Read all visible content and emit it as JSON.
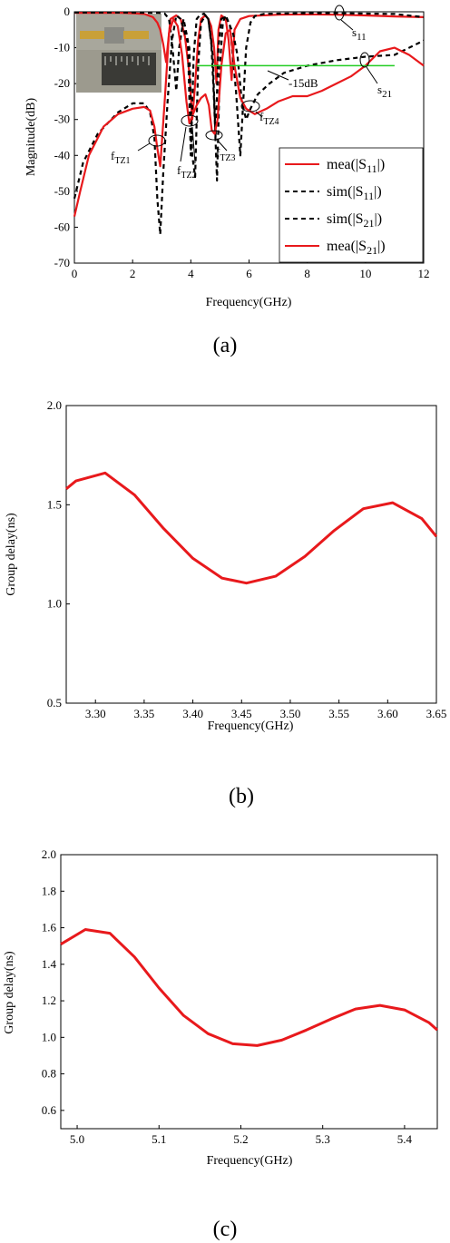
{
  "colors": {
    "measured": "#e8191c",
    "simulated": "#000000",
    "marker": "#22cc22"
  },
  "chart_data": [
    {
      "type": "line",
      "panel_label": "(a)",
      "xlabel": "Frequency(GHz)",
      "ylabel": "Magnitude(dB)",
      "xlim": [
        0,
        12
      ],
      "ylim": [
        -70,
        0
      ],
      "xticks": [
        0,
        2,
        4,
        6,
        8,
        10,
        12
      ],
      "yticks": [
        0,
        -10,
        -20,
        -30,
        -40,
        -50,
        -60,
        -70
      ],
      "legend_position": "bottom-right",
      "inset_photo": true,
      "annotations": {
        "fTZ1": "f",
        "fTZ1_sub": "TZ1",
        "fTZ2": "f",
        "fTZ2_sub": "TZ2",
        "fTZ3": "f",
        "fTZ3_sub": "TZ3",
        "fTZ4": "f",
        "fTZ4_sub": "TZ4",
        "s11": "s",
        "s11_sub": "11",
        "s21": "s",
        "s21_sub": "21",
        "ref": "-15dB",
        "ref_level": -15,
        "ref_range": [
          4.2,
          11
        ]
      },
      "series": [
        {
          "name": "mea(|S",
          "sub": "11",
          "tail": "|)",
          "style": "solid",
          "x": [
            0,
            0.4,
            0.8,
            1.2,
            1.6,
            2.0,
            2.4,
            2.7,
            2.85,
            2.95,
            3.05,
            3.15,
            3.3,
            3.5,
            3.65,
            3.8,
            3.95,
            4.05,
            4.15,
            4.25,
            4.35,
            4.5,
            4.6,
            4.7,
            4.8,
            4.88,
            4.95,
            5.05,
            5.2,
            5.3,
            5.4,
            5.5,
            5.7,
            6.0,
            7.0,
            8.0,
            9.0,
            10.0,
            11.0,
            12.0
          ],
          "y": [
            -0.3,
            -0.3,
            -0.3,
            -0.3,
            -0.3,
            -0.4,
            -0.6,
            -1.5,
            -3,
            -5,
            -9,
            -14,
            -2,
            -1,
            -2,
            -7,
            -17,
            -30,
            -20,
            -8,
            -2,
            -1,
            -2,
            -4,
            -10,
            -20,
            -5,
            -1,
            -2,
            -8,
            -19,
            -5,
            -2,
            -1.2,
            -0.8,
            -0.7,
            -0.8,
            -1,
            -1.3,
            -1.5
          ]
        },
        {
          "name": "sim(|S",
          "sub": "11",
          "tail": "|)",
          "style": "dashed",
          "x": [
            0,
            1,
            2,
            2.9,
            3.1,
            3.25,
            3.35,
            3.5,
            3.6,
            3.75,
            3.9,
            4.0,
            4.1,
            4.2,
            4.3,
            4.45,
            4.6,
            4.75,
            4.85,
            4.95,
            5.05,
            5.2,
            5.35,
            5.55,
            5.7,
            5.8,
            5.9,
            6.05,
            6.2,
            6.5,
            7,
            8,
            9,
            10,
            11,
            12
          ],
          "y": [
            -0.2,
            -0.2,
            -0.2,
            -0.3,
            -0.5,
            -2,
            -8,
            -22,
            -10,
            -2,
            -8,
            -40,
            -12,
            -2,
            -1,
            -0.5,
            -2,
            -12,
            -35,
            -10,
            -2,
            -1.2,
            -4,
            -22,
            -40,
            -25,
            -10,
            -3,
            -1.2,
            -0.6,
            -0.5,
            -0.4,
            -0.4,
            -0.5,
            -0.6,
            -1.5
          ]
        },
        {
          "name": "sim(|S",
          "sub": "21",
          "tail": "|)",
          "style": "dashed",
          "x": [
            0,
            0.3,
            0.8,
            1.5,
            2.0,
            2.4,
            2.6,
            2.75,
            2.85,
            2.95,
            3.05,
            3.2,
            3.35,
            3.5,
            3.65,
            3.8,
            3.95,
            4.05,
            4.15,
            4.25,
            4.35,
            4.5,
            4.6,
            4.7,
            4.8,
            4.9,
            5.0,
            5.1,
            5.2,
            5.3,
            5.45,
            5.6,
            5.75,
            5.9,
            6.05,
            6.3,
            6.7,
            7.2,
            8.0,
            9.0,
            10.0,
            11.0,
            12.0
          ],
          "y": [
            -52,
            -42,
            -34,
            -28,
            -25.5,
            -25.5,
            -28,
            -35,
            -52,
            -62,
            -45,
            -25,
            -8,
            -1,
            -2,
            -6,
            -10,
            -40,
            -46,
            -15,
            -3,
            -1,
            -2,
            -8,
            -25,
            -47,
            -15,
            -3,
            -1,
            -3,
            -6,
            -12,
            -25,
            -30,
            -27,
            -23,
            -20,
            -17,
            -15,
            -13.5,
            -12.5,
            -12,
            -8
          ]
        },
        {
          "name": "mea(|S",
          "sub": "21",
          "tail": "|)",
          "style": "solid",
          "x": [
            0,
            0.2,
            0.5,
            1.0,
            1.5,
            2.0,
            2.4,
            2.6,
            2.75,
            2.85,
            2.95,
            3.1,
            3.25,
            3.4,
            3.55,
            3.7,
            3.85,
            3.95,
            4.05,
            4.2,
            4.35,
            4.5,
            4.62,
            4.72,
            4.82,
            4.92,
            5.05,
            5.2,
            5.35,
            5.5,
            5.7,
            5.9,
            6.2,
            6.6,
            7.0,
            7.5,
            8.0,
            8.5,
            9.0,
            9.5,
            10.0,
            10.5,
            11.0,
            11.5,
            12.0
          ],
          "y": [
            -57,
            -50,
            -40,
            -32,
            -28.5,
            -27,
            -26.5,
            -27.5,
            -32,
            -38,
            -43,
            -25,
            -6,
            -2,
            -4,
            -12,
            -25,
            -31,
            -29,
            -26,
            -24,
            -23,
            -26,
            -33,
            -34,
            -30,
            -15,
            -6,
            -5,
            -15,
            -24,
            -27,
            -28.5,
            -27,
            -25,
            -23.5,
            -23.5,
            -22,
            -20,
            -18,
            -15,
            -11,
            -10,
            -12,
            -15
          ]
        }
      ]
    },
    {
      "type": "line",
      "panel_label": "(b)",
      "xlabel": "Frequency(GHz)",
      "ylabel": "Group delay(ns)",
      "xlim": [
        3.27,
        3.65
      ],
      "ylim": [
        0.5,
        2.0
      ],
      "xticks": [
        "3.30",
        "3.35",
        "3.40",
        "3.45",
        "3.50",
        "3.55",
        "3.60",
        "3.65"
      ],
      "yticks": [
        "0.5",
        "1.0",
        "1.5",
        "2.0"
      ],
      "series": [
        {
          "x": [
            3.27,
            3.28,
            3.31,
            3.34,
            3.37,
            3.4,
            3.43,
            3.455,
            3.485,
            3.515,
            3.545,
            3.575,
            3.605,
            3.635,
            3.65
          ],
          "y": [
            1.58,
            1.62,
            1.66,
            1.55,
            1.38,
            1.23,
            1.13,
            1.105,
            1.14,
            1.24,
            1.37,
            1.48,
            1.51,
            1.43,
            1.34
          ]
        }
      ]
    },
    {
      "type": "line",
      "panel_label": "(c)",
      "xlabel": "Frequency(GHz)",
      "ylabel": "Group delay(ns)",
      "xlim": [
        4.98,
        5.44
      ],
      "ylim": [
        0.5,
        2.0
      ],
      "xticks": [
        "5.0",
        "5.1",
        "5.2",
        "5.3",
        "5.4"
      ],
      "yticks": [
        "0.6",
        "0.8",
        "1.0",
        "1.2",
        "1.4",
        "1.6",
        "1.8",
        "2.0"
      ],
      "series": [
        {
          "x": [
            4.98,
            5.01,
            5.04,
            5.07,
            5.1,
            5.13,
            5.16,
            5.19,
            5.22,
            5.25,
            5.28,
            5.31,
            5.34,
            5.37,
            5.4,
            5.43,
            5.44
          ],
          "y": [
            1.51,
            1.59,
            1.57,
            1.44,
            1.27,
            1.12,
            1.02,
            0.965,
            0.955,
            0.985,
            1.04,
            1.1,
            1.155,
            1.175,
            1.15,
            1.08,
            1.04
          ]
        }
      ]
    }
  ]
}
